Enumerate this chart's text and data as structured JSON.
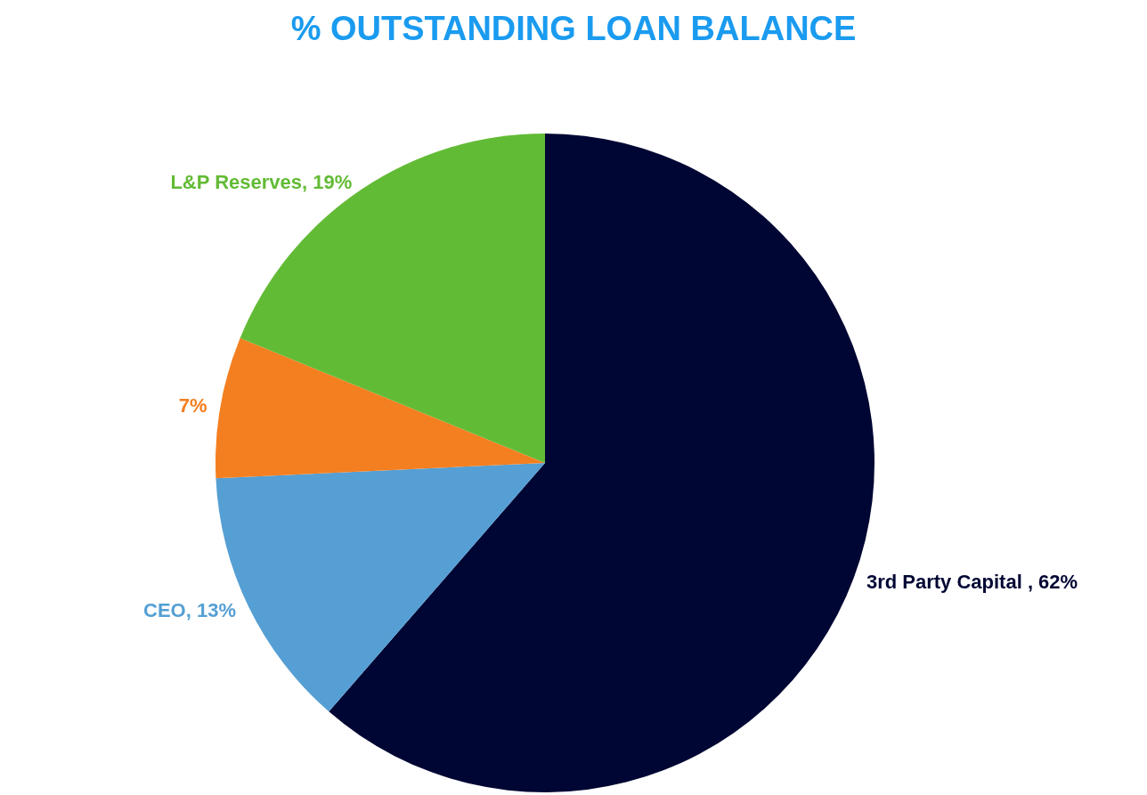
{
  "chart_data": {
    "type": "pie",
    "title": "% OUTSTANDING LOAN BALANCE",
    "categories": [
      "3rd Party Capital ",
      "CEO",
      null,
      "L&P Reserves"
    ],
    "values": [
      62,
      13,
      7,
      19
    ],
    "colors": [
      "#000633",
      "#559fd4",
      "#f47f20",
      "#62bb35"
    ],
    "value_labels": [
      "62%",
      "13%",
      "7%",
      "19%"
    ],
    "legend": false
  }
}
